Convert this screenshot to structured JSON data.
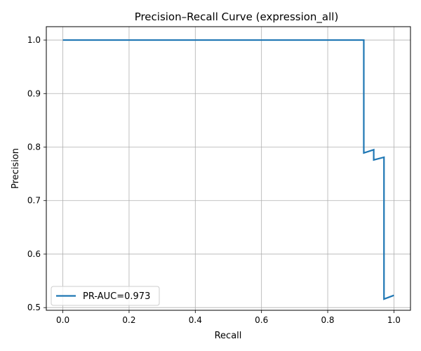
{
  "chart_data": {
    "type": "line",
    "title": "Precision–Recall Curve (expression_all)",
    "xlabel": "Recall",
    "ylabel": "Precision",
    "xlim": [
      -0.05,
      1.05
    ],
    "ylim": [
      0.495,
      1.025
    ],
    "xticks": [
      0.0,
      0.2,
      0.4,
      0.6,
      0.8,
      1.0
    ],
    "xtick_labels": [
      "0.0",
      "0.2",
      "0.4",
      "0.6",
      "0.8",
      "1.0"
    ],
    "yticks": [
      0.5,
      0.6,
      0.7,
      0.8,
      0.9,
      1.0
    ],
    "ytick_labels": [
      "0.5",
      "0.6",
      "0.7",
      "0.8",
      "0.9",
      "1.0"
    ],
    "grid": true,
    "legend_position": "lower-left",
    "series": [
      {
        "name": "PR-AUC=0.973",
        "color": "#1f77b4",
        "x": [
          0.0,
          0.909,
          0.909,
          0.939,
          0.939,
          0.97,
          0.97,
          1.0
        ],
        "y": [
          1.0,
          1.0,
          0.789,
          0.795,
          0.776,
          0.781,
          0.516,
          0.523
        ]
      }
    ]
  }
}
